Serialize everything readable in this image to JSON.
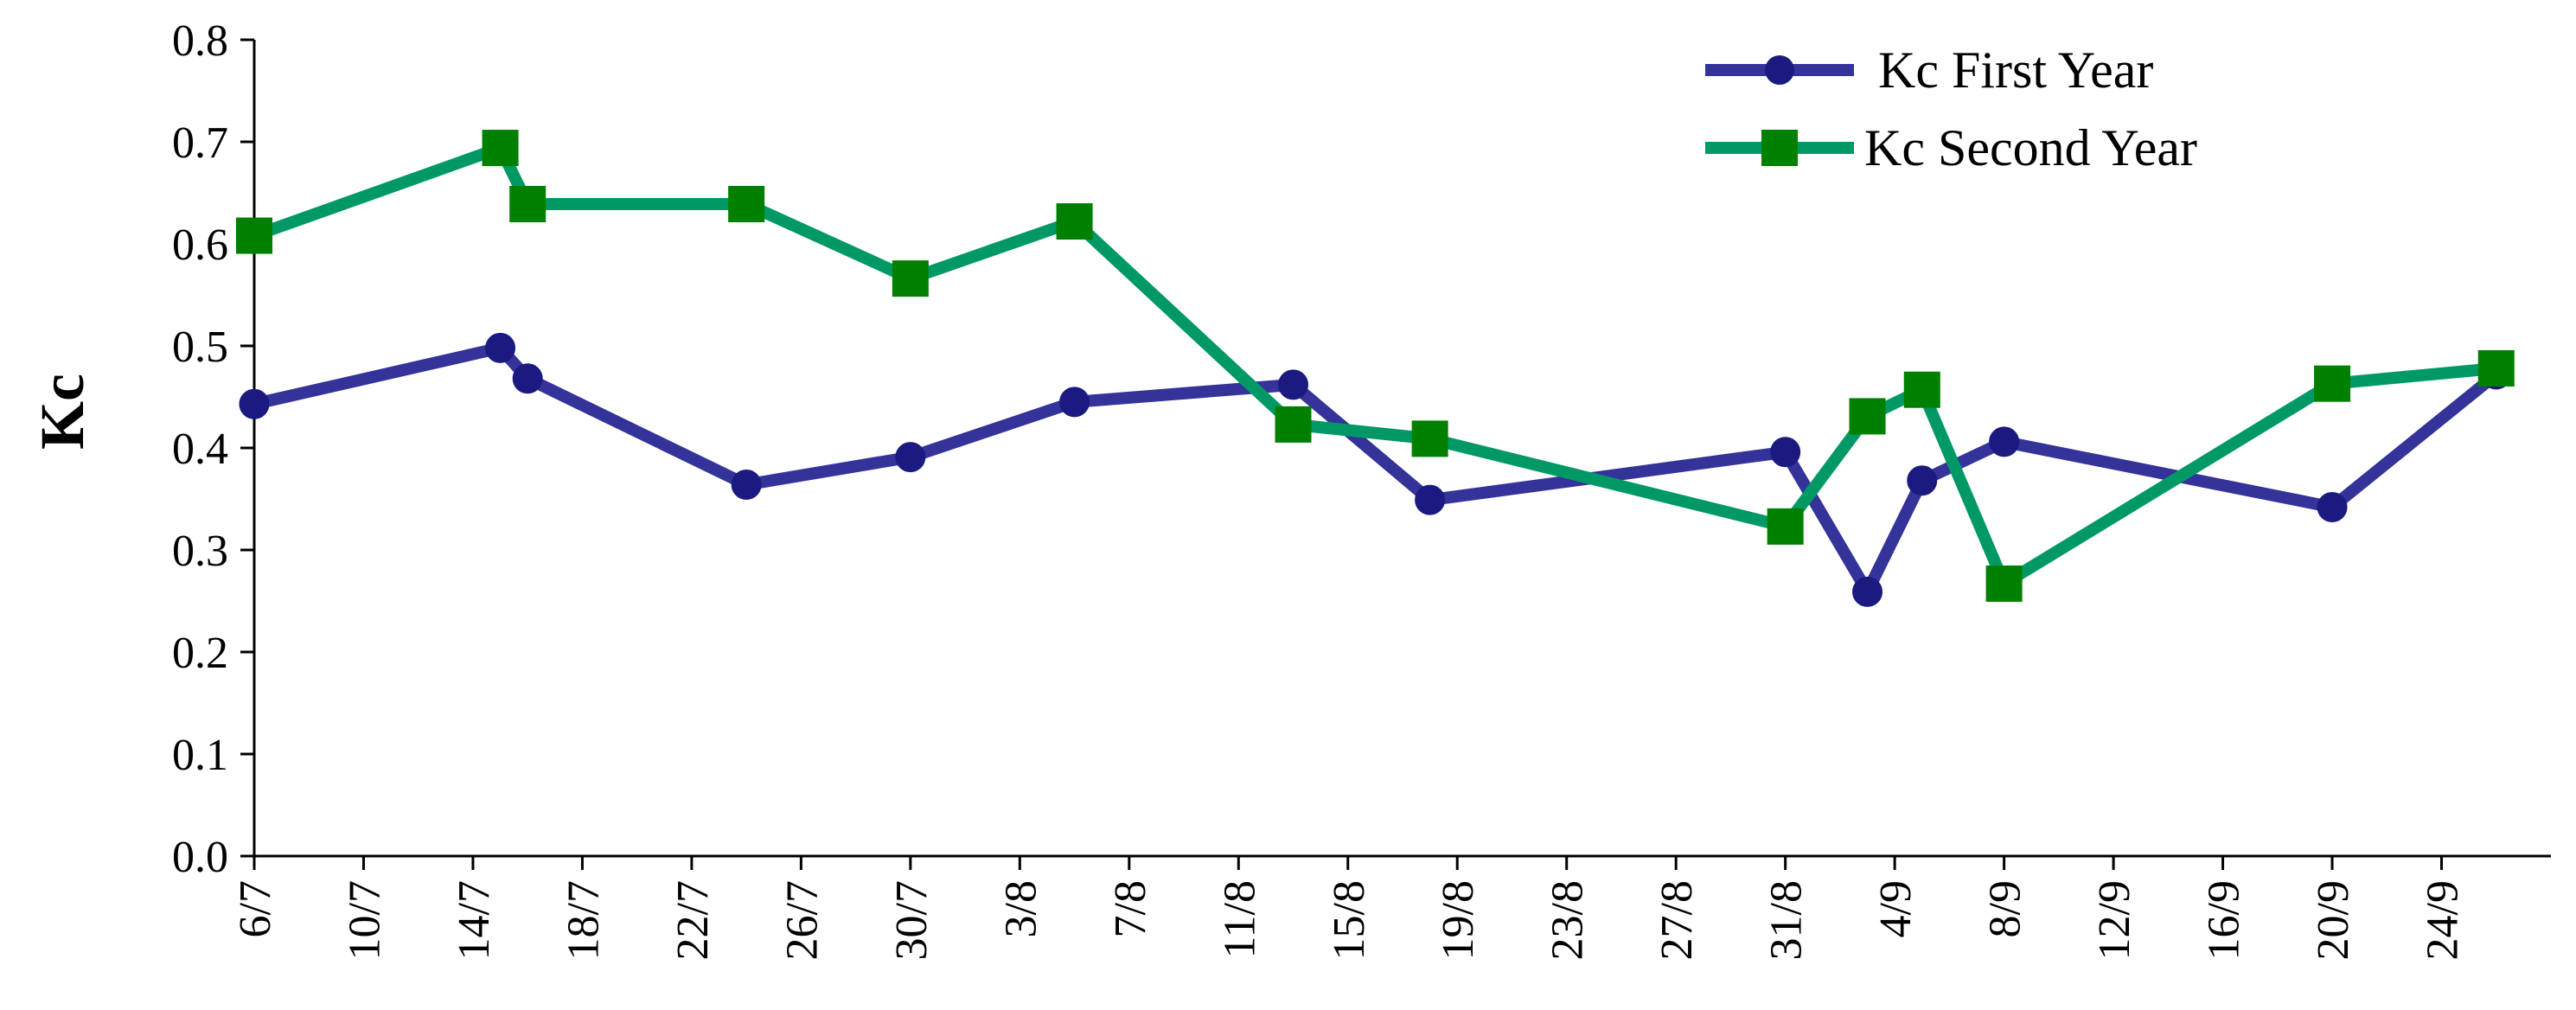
{
  "chart_data": {
    "type": "line",
    "ylabel": "Kc",
    "xlabel": "",
    "ylim": [
      0,
      0.8
    ],
    "y_ticks": [
      "0.0",
      "0.1",
      "0.2",
      "0.3",
      "0.4",
      "0.5",
      "0.6",
      "0.7",
      "0.8"
    ],
    "x_range": [
      "2000-07-06",
      "2000-09-28"
    ],
    "x_ticks": [
      "6/7",
      "10/7",
      "14/7",
      "18/7",
      "22/7",
      "26/7",
      "30/7",
      "3/8",
      "7/8",
      "11/8",
      "15/8",
      "19/8",
      "23/8",
      "27/8",
      "31/8",
      "4/9",
      "8/9",
      "12/9",
      "16/9",
      "20/9",
      "24/9"
    ],
    "grid": false,
    "legend_position": "top-right",
    "series": [
      {
        "name": "Kc First Year",
        "color": "#333399",
        "marker": "circle",
        "points": [
          {
            "x": "6/7",
            "y": 0.443
          },
          {
            "x": "15/7",
            "y": 0.498
          },
          {
            "x": "16/7",
            "y": 0.468
          },
          {
            "x": "24/7",
            "y": 0.364
          },
          {
            "x": "30/7",
            "y": 0.391
          },
          {
            "x": "5/8",
            "y": 0.445
          },
          {
            "x": "13/8",
            "y": 0.462
          },
          {
            "x": "18/8",
            "y": 0.349
          },
          {
            "x": "31/8",
            "y": 0.396
          },
          {
            "x": "3/9",
            "y": 0.259
          },
          {
            "x": "5/9",
            "y": 0.368
          },
          {
            "x": "8/9",
            "y": 0.406
          },
          {
            "x": "20/9",
            "y": 0.342
          },
          {
            "x": "26/9",
            "y": 0.472
          }
        ]
      },
      {
        "name": "Kc Second Year",
        "color": "#009966",
        "marker_color": "#008000",
        "marker": "square",
        "points": [
          {
            "x": "6/7",
            "y": 0.608
          },
          {
            "x": "15/7",
            "y": 0.694
          },
          {
            "x": "16/7",
            "y": 0.639
          },
          {
            "x": "24/7",
            "y": 0.639
          },
          {
            "x": "30/7",
            "y": 0.566
          },
          {
            "x": "5/8",
            "y": 0.622
          },
          {
            "x": "13/8",
            "y": 0.423
          },
          {
            "x": "18/8",
            "y": 0.409
          },
          {
            "x": "31/8",
            "y": 0.323
          },
          {
            "x": "3/9",
            "y": 0.431
          },
          {
            "x": "5/9",
            "y": 0.457
          },
          {
            "x": "8/9",
            "y": 0.267
          },
          {
            "x": "20/9",
            "y": 0.463
          },
          {
            "x": "26/9",
            "y": 0.478
          }
        ]
      }
    ]
  }
}
